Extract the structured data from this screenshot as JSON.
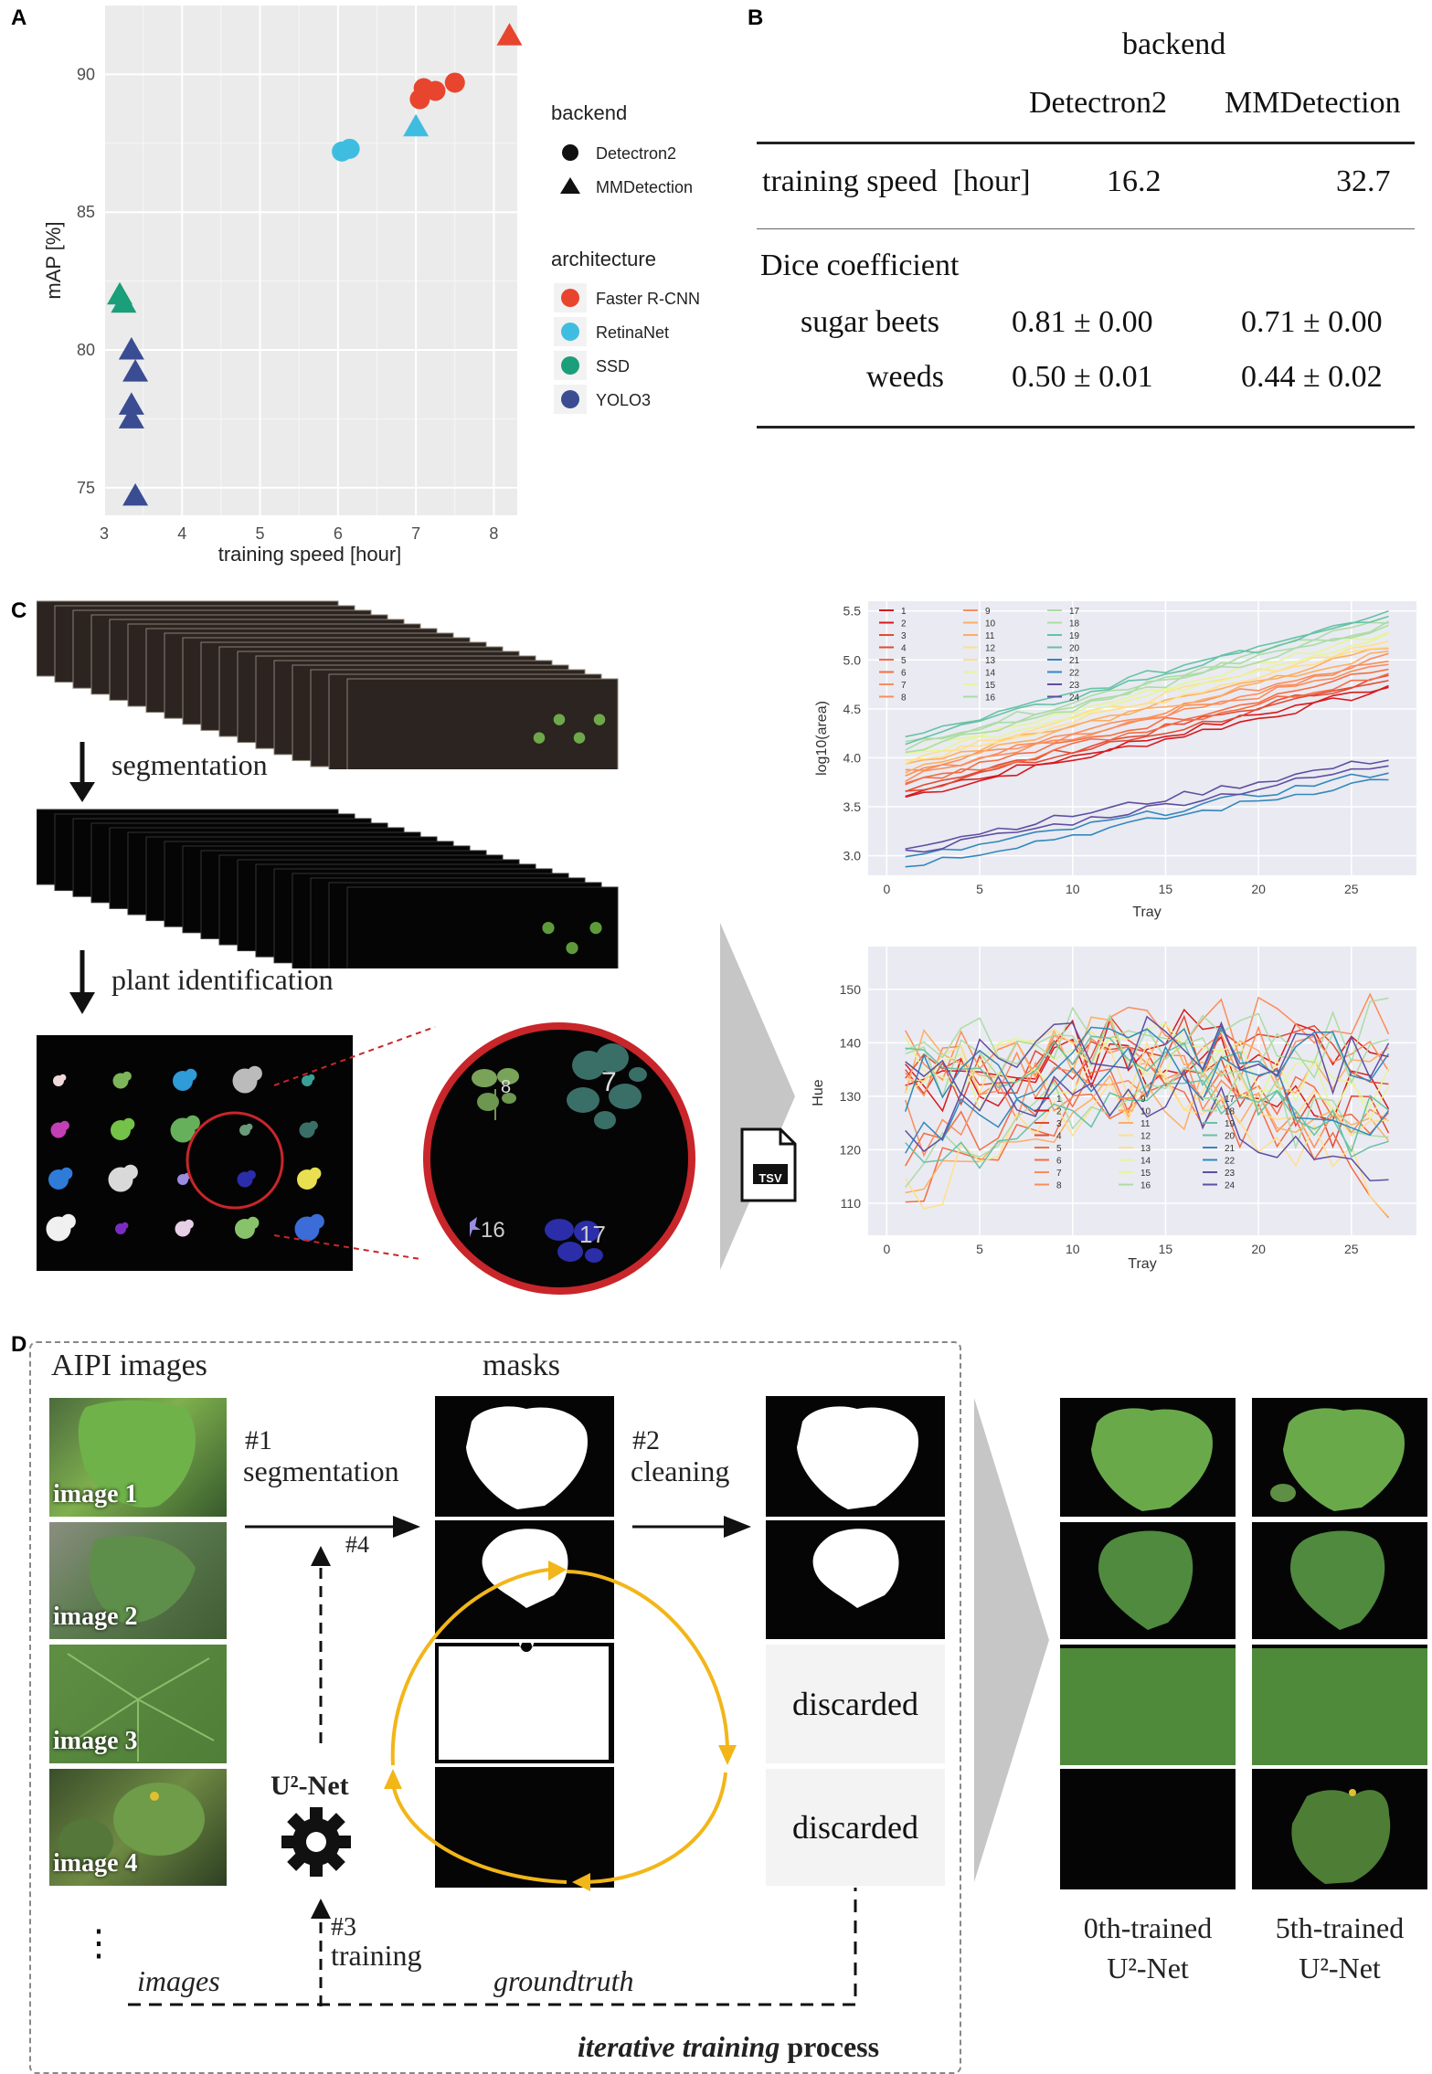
{
  "panels": {
    "a": "A",
    "b": "B",
    "c": "C",
    "d": "D"
  },
  "panel_a": {
    "xlabel": "training speed [hour]",
    "ylabel": "mAP [%]",
    "xticks": [
      "3",
      "4",
      "5",
      "6",
      "7",
      "8"
    ],
    "yticks": [
      "75",
      "80",
      "85",
      "90"
    ],
    "legend_backend_title": "backend",
    "legend_backend": [
      "Detectron2",
      "MMDetection"
    ],
    "legend_arch_title": "architecture",
    "legend_arch": [
      "Faster R-CNN",
      "RetinaNet",
      "SSD",
      "YOLO3"
    ],
    "colors": {
      "Faster R-CNN": "#e8452f",
      "RetinaNet": "#3fbde0",
      "SSD": "#1b9e7a",
      "YOLO3": "#3a4d93"
    }
  },
  "panel_b": {
    "header": "backend",
    "col1": "Detectron2",
    "col2": "MMDetection",
    "row_speed_label": "training speed  [hour]",
    "row_speed_v1": "16.2",
    "row_speed_v2": "32.7",
    "dice_label": "Dice coefficient",
    "row_sugar_label": "sugar beets",
    "row_sugar_v1": "0.81 ± 0.00",
    "row_sugar_v2": "0.71 ± 0.00",
    "row_weeds_label": "weeds",
    "row_weeds_v1": "0.50 ± 0.01",
    "row_weeds_v2": "0.44 ± 0.02"
  },
  "panel_c": {
    "step_segmentation": "segmentation",
    "step_identification": "plant identification",
    "file_label": "TSV",
    "zoom_labels": [
      "8",
      "7",
      "16",
      "17"
    ],
    "top_ylabel": "log10(area)",
    "top_xlabel": "Tray",
    "top_yticks": [
      "3.0",
      "3.5",
      "4.0",
      "4.5",
      "5.0",
      "5.5"
    ],
    "bottom_ylabel": "Hue",
    "bottom_xlabel": "Tray",
    "bottom_yticks": [
      "110",
      "120",
      "130",
      "140",
      "150"
    ],
    "xticks": [
      "0",
      "5",
      "10",
      "15",
      "20",
      "25"
    ],
    "legend_ids": [
      "1",
      "2",
      "3",
      "4",
      "5",
      "6",
      "7",
      "8",
      "9",
      "10",
      "11",
      "12",
      "13",
      "14",
      "15",
      "16",
      "17",
      "18",
      "19",
      "20",
      "21",
      "22",
      "23",
      "24"
    ]
  },
  "panel_d": {
    "col_images": "AIPI images",
    "col_masks": "masks",
    "step1_num": "#1",
    "step1": "segmentation",
    "step2_num": "#2",
    "step2": "cleaning",
    "step3_num": "#3",
    "step3": "training",
    "step4_num": "#4",
    "image_labels": [
      "image 1",
      "image 2",
      "image 3",
      "image 4"
    ],
    "discarded": "discarded",
    "net_name": "U²-Net",
    "images_label": "images",
    "groundtruth_label": "groundtruth",
    "process_italic": "iterative training",
    "process_rest": " process",
    "result_left_line1": "0th-trained",
    "result_left_line2": "U²-Net",
    "result_right_line1": "5th-trained",
    "result_right_line2": "U²-Net",
    "ellipsis": "⋮"
  },
  "chart_data": [
    {
      "type": "scatter",
      "title": "",
      "xlabel": "training speed [hour]",
      "ylabel": "mAP [%]",
      "xlim": [
        3,
        8.3
      ],
      "ylim": [
        74,
        92.5
      ],
      "grid": true,
      "legend": "right",
      "series": [
        {
          "name": "Faster R-CNN",
          "points": [
            {
              "x": 7.05,
              "y": 89.1,
              "backend": "Detectron2"
            },
            {
              "x": 7.1,
              "y": 89.5,
              "backend": "Detectron2"
            },
            {
              "x": 7.25,
              "y": 89.4,
              "backend": "Detectron2"
            },
            {
              "x": 7.5,
              "y": 89.7,
              "backend": "Detectron2"
            },
            {
              "x": 8.2,
              "y": 91.4,
              "backend": "MMDetection"
            }
          ]
        },
        {
          "name": "RetinaNet",
          "points": [
            {
              "x": 6.05,
              "y": 87.2,
              "backend": "Detectron2"
            },
            {
              "x": 6.15,
              "y": 87.3,
              "backend": "Detectron2"
            },
            {
              "x": 7.0,
              "y": 88.1,
              "backend": "MMDetection"
            }
          ]
        },
        {
          "name": "SSD",
          "points": [
            {
              "x": 3.2,
              "y": 82.0,
              "backend": "MMDetection"
            },
            {
              "x": 3.25,
              "y": 81.7,
              "backend": "MMDetection"
            }
          ]
        },
        {
          "name": "YOLO3",
          "points": [
            {
              "x": 3.35,
              "y": 80.0,
              "backend": "MMDetection"
            },
            {
              "x": 3.4,
              "y": 79.2,
              "backend": "MMDetection"
            },
            {
              "x": 3.35,
              "y": 78.0,
              "backend": "MMDetection"
            },
            {
              "x": 3.35,
              "y": 77.5,
              "backend": "MMDetection"
            },
            {
              "x": 3.4,
              "y": 74.7,
              "backend": "MMDetection"
            }
          ]
        }
      ]
    },
    {
      "type": "line",
      "title": "",
      "xlabel": "Tray",
      "ylabel": "log10(area)",
      "xlim": [
        -1,
        28.5
      ],
      "ylim": [
        2.8,
        5.6
      ],
      "grid": true,
      "legend": "top-left",
      "x": [
        1,
        27
      ],
      "series_groups": [
        {
          "names": [
            "1",
            "2",
            "3",
            "4",
            "5",
            "6",
            "7",
            "8",
            "9",
            "10",
            "11",
            "12",
            "13",
            "14",
            "15",
            "16",
            "17",
            "18",
            "19",
            "20"
          ],
          "start_range": [
            3.6,
            4.2
          ],
          "end_range": [
            4.7,
            5.5
          ]
        },
        {
          "names": [
            "21",
            "22",
            "23",
            "24"
          ],
          "start_range": [
            2.9,
            3.1
          ],
          "end_range": [
            3.8,
            4.0
          ]
        }
      ]
    },
    {
      "type": "line",
      "title": "",
      "xlabel": "Tray",
      "ylabel": "Hue",
      "xlim": [
        -1,
        28.5
      ],
      "ylim": [
        104,
        158
      ],
      "grid": true,
      "legend": "bottom-center",
      "x": [
        1,
        27
      ],
      "series_groups": [
        {
          "names": [
            "1",
            "2",
            "3",
            "4",
            "5",
            "6",
            "7",
            "8",
            "9",
            "10",
            "11",
            "12",
            "13",
            "14",
            "15",
            "16",
            "17",
            "18",
            "19",
            "20",
            "21",
            "22",
            "23",
            "24"
          ],
          "start_range": [
            108,
            140
          ],
          "end_range": [
            107,
            145
          ]
        }
      ]
    }
  ]
}
